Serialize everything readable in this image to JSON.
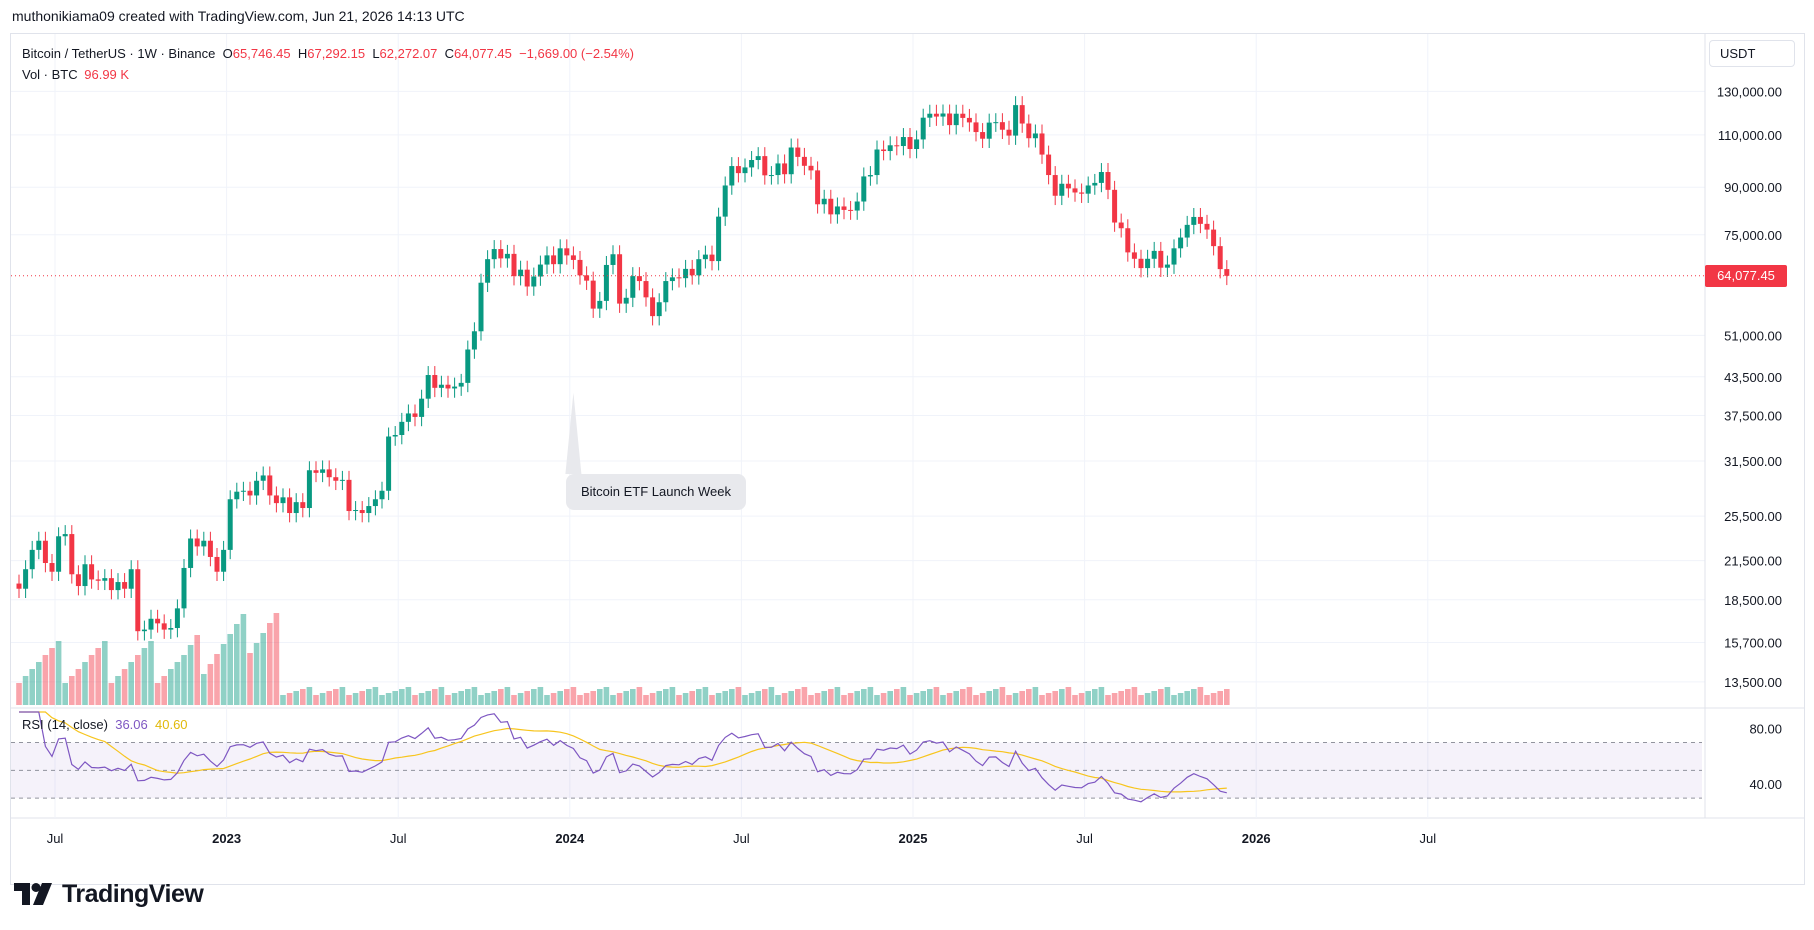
{
  "header": "muthonikiama09 created with TradingView.com, Jun 21, 2026 14:13 UTC",
  "legend": {
    "symbol": "Bitcoin / TetherUS · 1W · Binance",
    "o_label": "O",
    "o_value": "65,746.45",
    "h_label": "H",
    "h_value": "67,292.15",
    "l_label": "L",
    "l_value": "62,272.07",
    "c_label": "C",
    "c_value": "64,077.45",
    "change": "−1,669.00 (−2.54%)",
    "vol_label": "Vol · BTC",
    "vol_value": "96.99 K"
  },
  "rsi_legend": {
    "label": "RSI (14, close)",
    "rsi": "36.06",
    "ma": "40.60"
  },
  "currency": "USDT",
  "last_price": "64,077.45",
  "annotation": "Bitcoin ETF Launch Week",
  "brand": "TradingView",
  "colors": {
    "up": "#089981",
    "down": "#f23645",
    "rsi": "#7e57c2",
    "rsi_ma": "#f7c51e"
  },
  "chart_data": [
    {
      "type": "candlestick",
      "scale": "log",
      "x_tick_labels": [
        "Jul",
        "2023",
        "Jul",
        "2024",
        "Jul",
        "2025",
        "Jul",
        "2026",
        "Jul"
      ],
      "y_tick_labels": [
        "130,000.00",
        "110,000.00",
        "90,000.00",
        "75,000.00",
        "64,077.45",
        "51,000.00",
        "43,500.00",
        "37,500.00",
        "31,500.00",
        "25,500.00",
        "21,500.00",
        "18,500.00",
        "15,700.00",
        "13,500.00"
      ],
      "ylim": [
        12500,
        140000
      ],
      "weekly_close_approx": [
        19300,
        20800,
        22400,
        23200,
        21300,
        20600,
        23600,
        23800,
        20400,
        19500,
        21200,
        20000,
        19900,
        20100,
        19200,
        19800,
        19300,
        20800,
        16400,
        16500,
        17200,
        16900,
        16500,
        16600,
        17900,
        20900,
        23400,
        22700,
        23200,
        21800,
        20600,
        22400,
        27200,
        28000,
        28100,
        27600,
        29200,
        29800,
        27600,
        26800,
        27400,
        25800,
        26900,
        26300,
        30400,
        30100,
        30500,
        29600,
        29200,
        29300,
        26000,
        26100,
        25800,
        26500,
        27200,
        28100,
        34600,
        34800,
        36600,
        37800,
        37300,
        40000,
        43800,
        41700,
        42200,
        41600,
        41900,
        42500,
        48300,
        51800,
        62400,
        68300,
        71000,
        68500,
        69700,
        64000,
        65600,
        61500,
        63900,
        66900,
        69300,
        67000,
        71200,
        69300,
        68100,
        64200,
        62900,
        56500,
        58200,
        66800,
        69600,
        57600,
        58900,
        64000,
        62800,
        59000,
        54900,
        57900,
        62800,
        63700,
        63500,
        65800,
        64200,
        68300,
        69500,
        67800,
        80400,
        90600,
        97600,
        95000,
        97100,
        99900,
        101400,
        94200,
        94300,
        98600,
        94600,
        104800,
        101100,
        97700,
        96000,
        84300,
        86100,
        81100,
        83600,
        82500,
        82300,
        85200,
        93800,
        94300,
        104000,
        103400,
        105700,
        105400,
        109100,
        104200,
        108100,
        117500,
        119300,
        118000,
        119400,
        114200,
        119300,
        117400,
        115400,
        111200,
        108400,
        115300,
        115500,
        112200,
        109700,
        123300,
        114900,
        108600,
        110600,
        102000,
        94300,
        87100,
        91200,
        89600,
        88200,
        87800,
        90600,
        91500,
        95400,
        89100,
        78600,
        76900,
        70100,
        68400,
        66000,
        68400,
        70500,
        66100,
        66900,
        71200,
        74200,
        77900,
        80300,
        78200,
        76500,
        71800,
        65746,
        64077
      ],
      "volume_label": "Vol · BTC",
      "annotation": "Bitcoin ETF Launch Week"
    },
    {
      "type": "line",
      "title": "RSI (14, close)",
      "y_tick_labels": [
        "80.00",
        "40.00"
      ],
      "ylim": [
        20,
        92
      ],
      "bands": [
        70,
        50,
        30
      ],
      "series": [
        {
          "name": "RSI",
          "last": 36.06
        },
        {
          "name": "MA",
          "last": 40.6
        }
      ]
    }
  ]
}
